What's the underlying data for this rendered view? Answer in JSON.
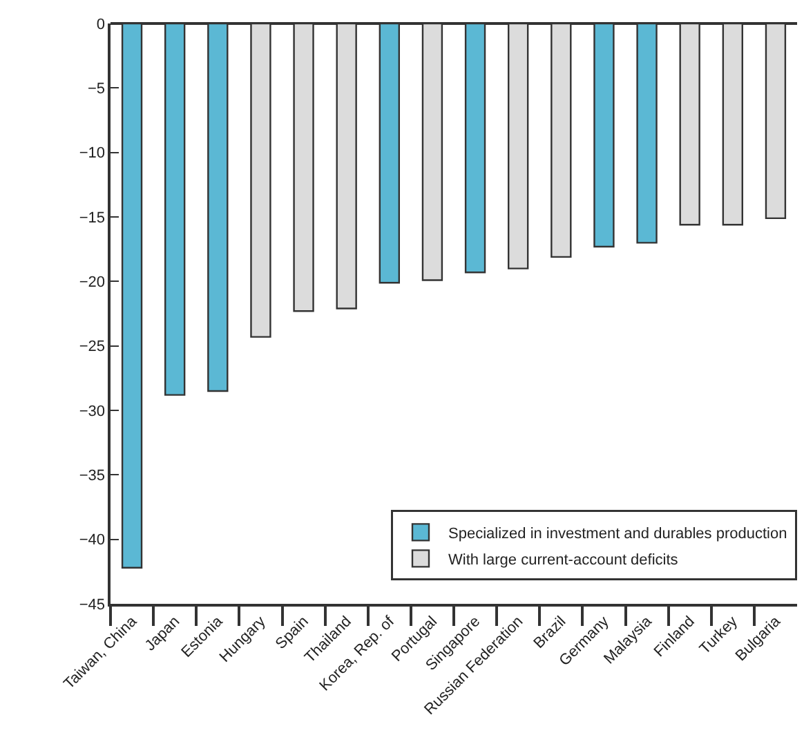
{
  "chart_data": {
    "type": "bar",
    "categories": [
      "Taiwan, China",
      "Japan",
      "Estonia",
      "Hungary",
      "Spain",
      "Thailand",
      "Korea, Rep. of",
      "Portugal",
      "Singapore",
      "Russian Federation",
      "Brazil",
      "Germany",
      "Malaysia",
      "Finland",
      "Turkey",
      "Bulgaria"
    ],
    "series": [
      {
        "name": "Specialized in investment and durables production",
        "color": "#5bb8d4",
        "values": [
          -42.2,
          -28.8,
          -28.5,
          null,
          null,
          null,
          -20.1,
          null,
          -19.3,
          null,
          null,
          -17.3,
          -17.0,
          null,
          null,
          null
        ]
      },
      {
        "name": "With large current-account deficits",
        "color": "#dcdcdc",
        "values": [
          null,
          null,
          null,
          -24.3,
          -22.3,
          -22.1,
          null,
          -19.9,
          null,
          -19.0,
          -18.1,
          null,
          null,
          -15.6,
          -15.6,
          -15.1
        ]
      }
    ],
    "ylim": [
      -45,
      0
    ],
    "yticks": [
      0,
      -5,
      -10,
      -15,
      -20,
      -25,
      -30,
      -35,
      -40,
      -45
    ],
    "legend": "bottom right"
  }
}
